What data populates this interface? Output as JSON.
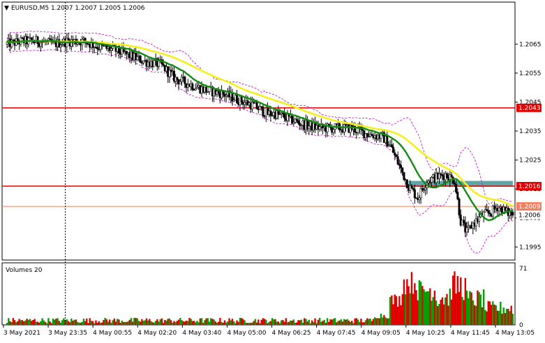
{
  "header": {
    "arrow": "▼",
    "text": "EURUSD,M5  1.2007 1.2007 1.2005 1.2006"
  },
  "volume_label": "Volumes 20",
  "colors": {
    "background": "#ffffff",
    "frame": "#000000",
    "candle": "#000000",
    "ma_fast": "#138a13",
    "ma_slow": "#f5ef1a",
    "envelope": "#c400c4",
    "level_line": "#e00000",
    "price_line": "#f08060",
    "zone": "#4e9b9b",
    "volume_up": "#00a000",
    "volume_down": "#e00000",
    "label_text": "#ffffff"
  },
  "chart_data": [
    {
      "type": "candlestick",
      "title": "EURUSD,M5",
      "last_bar": {
        "open": 1.2007,
        "high": 1.2007,
        "low": 1.2005,
        "close": 1.2006
      },
      "ylim": [
        1.19905,
        1.20795
      ],
      "yticks": [
        "1.2065",
        "1.2055",
        "1.2045",
        "1.2035",
        "1.2025",
        "1.2015",
        "1.2005",
        "1.1995"
      ],
      "xticks": [
        "3 May 2021",
        "3 May 23:35",
        "4 May 00:55",
        "4 May 02:20",
        "4 May 03:40",
        "4 May 05:00",
        "4 May 06:25",
        "4 May 07:45",
        "4 May 09:05",
        "4 May 10:25",
        "4 May 11:45",
        "4 May 13:05"
      ],
      "close_path": [
        [
          0,
          1.2065
        ],
        [
          10,
          1.2066
        ],
        [
          20,
          1.2066
        ],
        [
          30,
          1.2065
        ],
        [
          40,
          1.2066
        ],
        [
          50,
          1.2066
        ],
        [
          60,
          1.2064
        ],
        [
          70,
          1.2063
        ],
        [
          80,
          1.2061
        ],
        [
          90,
          1.2059
        ],
        [
          100,
          1.2058
        ],
        [
          110,
          1.2053
        ],
        [
          120,
          1.2051
        ],
        [
          130,
          1.2049
        ],
        [
          140,
          1.2048
        ],
        [
          150,
          1.2046
        ],
        [
          160,
          1.2044
        ],
        [
          170,
          1.2041
        ],
        [
          175,
          1.2041
        ],
        [
          185,
          1.2039
        ],
        [
          195,
          1.2037
        ],
        [
          205,
          1.2036
        ],
        [
          215,
          1.2036
        ],
        [
          225,
          1.2036
        ],
        [
          235,
          1.2034
        ],
        [
          245,
          1.2033
        ],
        [
          250,
          1.203
        ],
        [
          256,
          1.2023
        ],
        [
          262,
          1.2016
        ],
        [
          268,
          1.2012
        ],
        [
          274,
          1.2018
        ],
        [
          280,
          1.2019
        ],
        [
          286,
          1.202
        ],
        [
          292,
          1.2018
        ],
        [
          296,
          1.2004
        ],
        [
          300,
          1.2
        ],
        [
          304,
          1.2003
        ],
        [
          310,
          1.2006
        ],
        [
          316,
          1.2007
        ],
        [
          320,
          1.2009
        ],
        [
          326,
          1.2007
        ],
        [
          330,
          1.2006
        ]
      ],
      "bar_count": 331,
      "levels": [
        {
          "value": 1.2043,
          "label": "1.2043"
        },
        {
          "value": 1.2016,
          "label": "1.2016"
        }
      ],
      "price_line": {
        "value": 1.2009,
        "label": "1.2009"
      },
      "current_price": {
        "value": 1.2006,
        "label": "1.2006"
      },
      "zone": {
        "from_bar": 262,
        "to_bar": 330,
        "low": 1.20158,
        "high": 1.20178
      },
      "vertical_marker_bar": 38,
      "series": [
        {
          "name": "",
          "kind": "moving_average",
          "period": 20
        },
        {
          "name": "",
          "kind": "moving_average",
          "period": 50
        },
        {
          "name": "",
          "kind": "envelope",
          "period": 20
        }
      ]
    },
    {
      "type": "bar",
      "title": "Volumes 20",
      "ylim": [
        0,
        71
      ],
      "yticks": [
        "71",
        "0"
      ],
      "ranges": [
        {
          "from": 0,
          "to": 240,
          "min": 2,
          "max": 9
        },
        {
          "from": 240,
          "to": 250,
          "min": 8,
          "max": 16
        },
        {
          "from": 250,
          "to": 258,
          "min": 22,
          "max": 40
        },
        {
          "from": 258,
          "to": 268,
          "min": 38,
          "max": 68
        },
        {
          "from": 268,
          "to": 280,
          "min": 30,
          "max": 58
        },
        {
          "from": 280,
          "to": 290,
          "min": 20,
          "max": 50
        },
        {
          "from": 290,
          "to": 300,
          "min": 30,
          "max": 68
        },
        {
          "from": 300,
          "to": 312,
          "min": 20,
          "max": 45
        },
        {
          "from": 312,
          "to": 331,
          "min": 12,
          "max": 30
        }
      ]
    }
  ]
}
